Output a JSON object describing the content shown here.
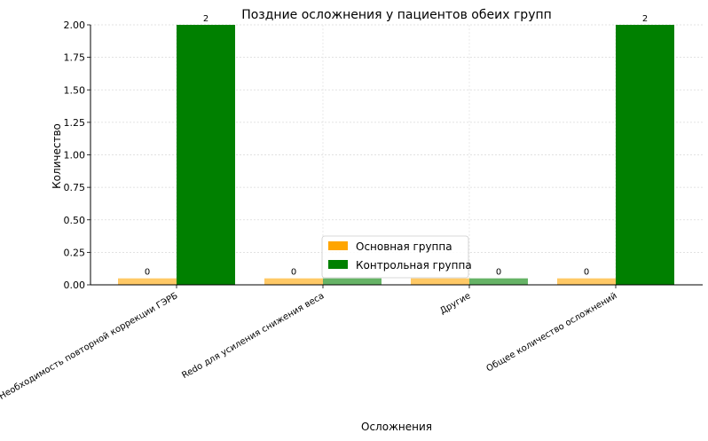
{
  "chart_data": {
    "type": "bar",
    "title": "Поздние осложнения у пациентов обеих групп",
    "xlabel": "Осложнения",
    "ylabel": "Количество",
    "categories": [
      "Необходимость повторной коррекции ГЭРБ",
      "Redo для усиления снижения веса",
      "Другие",
      "Общее количество осложнений"
    ],
    "series": [
      {
        "name": "Основная группа",
        "values": [
          0,
          0,
          0,
          0
        ],
        "color": "#ffa500"
      },
      {
        "name": "Контрольная группа",
        "values": [
          2,
          0,
          0,
          2
        ],
        "color": "#008000"
      }
    ],
    "ylim": [
      0,
      2.0
    ],
    "yticks": [
      "0.00",
      "0.25",
      "0.50",
      "0.75",
      "1.00",
      "1.25",
      "1.50",
      "1.75",
      "2.00"
    ],
    "data_labels_shown": [
      [
        "0",
        "0",
        "",
        "0"
      ],
      [
        "2",
        "",
        "0",
        "2"
      ]
    ],
    "grid": true,
    "legend_position": "lower-center"
  }
}
